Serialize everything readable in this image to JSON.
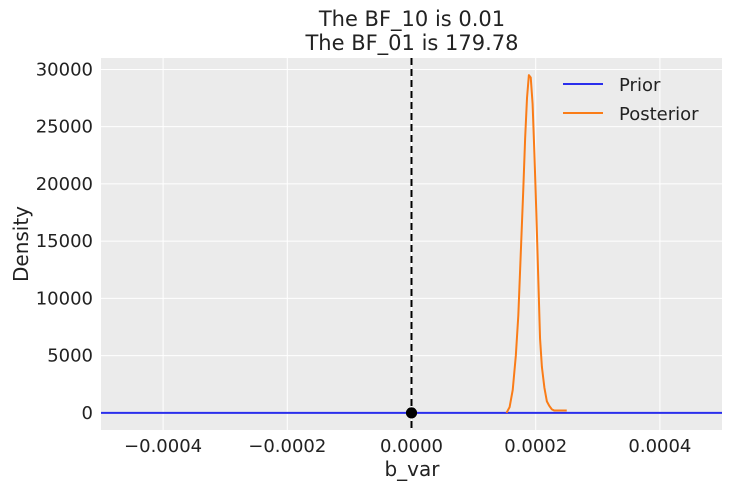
{
  "chart_data": {
    "type": "line",
    "title_lines": [
      "The BF_10 is 0.01",
      "The BF_01 is 179.78"
    ],
    "xlabel": "b_var",
    "ylabel": "Density",
    "xlim": [
      -0.0005,
      0.0005
    ],
    "ylim": [
      -1500,
      31000
    ],
    "x_ticks": [
      -0.0004,
      -0.0002,
      0.0,
      0.0002,
      0.0004
    ],
    "x_tick_labels": [
      "−0.0004",
      "−0.0002",
      "0.0000",
      "0.0002",
      "0.0004"
    ],
    "y_ticks": [
      0,
      5000,
      10000,
      15000,
      20000,
      25000,
      30000
    ],
    "y_tick_labels": [
      "0",
      "5000",
      "10000",
      "15000",
      "20000",
      "25000",
      "30000"
    ],
    "grid": true,
    "legend_position": "top-right",
    "background_color": "#ebebeb",
    "series": [
      {
        "name": "Prior",
        "color": "#2a2eec",
        "x": [
          -0.0005,
          0.0005
        ],
        "y": [
          0,
          0
        ]
      },
      {
        "name": "Posterior",
        "color": "#fa7c17",
        "x": [
          0.000153,
          0.000158,
          0.000163,
          0.000168,
          0.000172,
          0.000176,
          0.00018,
          0.000183,
          0.000186,
          0.000189,
          0.000192,
          0.000195,
          0.000198,
          0.000201,
          0.000204,
          0.000207,
          0.00021,
          0.000214,
          0.000218,
          0.000222,
          0.000226,
          0.00023,
          0.000235,
          0.00024,
          0.000245,
          0.00025
        ],
        "y": [
          0,
          500,
          2000,
          5000,
          8500,
          14000,
          19500,
          24000,
          27500,
          29500,
          29300,
          27000,
          22500,
          17500,
          12000,
          6500,
          4000,
          2200,
          1000,
          600,
          300,
          200,
          200,
          200,
          200,
          200
        ]
      }
    ],
    "reference_line": {
      "x": 0.0,
      "style": "dashed",
      "color": "#000000"
    },
    "markers": [
      {
        "x": 0.0,
        "y": 0,
        "color": "#000000",
        "series": "Prior"
      },
      {
        "x": 0.0,
        "y": 0,
        "color": "#000000",
        "series": "Posterior"
      }
    ]
  }
}
